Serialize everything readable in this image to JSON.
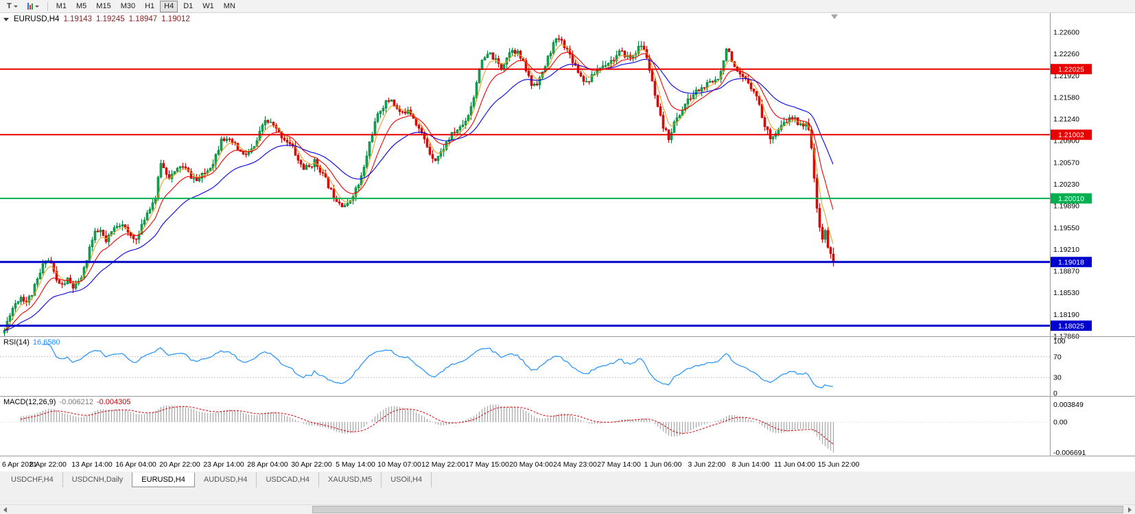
{
  "toolbar": {
    "text_tool": "T",
    "timeframes": [
      "M1",
      "M5",
      "M15",
      "M30",
      "H1",
      "H4",
      "D1",
      "W1",
      "MN"
    ],
    "active_timeframe": "H4"
  },
  "chart_header": {
    "symbol": "EURUSD,H4",
    "open": "1.19143",
    "high": "1.19245",
    "low": "1.18947",
    "close": "1.19012"
  },
  "price_axis": {
    "labels": [
      "1.22600",
      "1.22260",
      "1.21920",
      "1.21580",
      "1.21240",
      "1.20900",
      "1.20570",
      "1.20230",
      "1.19890",
      "1.19550",
      "1.19210",
      "1.18870",
      "1.18530",
      "1.18190",
      "1.17860"
    ],
    "top_value": 1.226,
    "bottom_value": 1.1786
  },
  "hlines": [
    {
      "label": "1.22025",
      "value": 1.22025,
      "color": "#e80000",
      "width": 2
    },
    {
      "label": "1.21002",
      "value": 1.21002,
      "color": "#e80000",
      "width": 2
    },
    {
      "label": "1.20010",
      "value": 1.2001,
      "color": "#00b050",
      "width": 2
    },
    {
      "label": "1.19018",
      "value": 1.19018,
      "color": "#0000cc",
      "width": 3
    },
    {
      "label": "1.18025",
      "value": 1.18025,
      "color": "#0000cc",
      "width": 3
    }
  ],
  "date_axis": [
    "6 Apr 2021",
    "8 Apr 22:00",
    "13 Apr 14:00",
    "16 Apr 04:00",
    "20 Apr 22:00",
    "23 Apr 14:00",
    "28 Apr 04:00",
    "30 Apr 22:00",
    "5 May 14:00",
    "10 May 07:00",
    "12 May 22:00",
    "17 May 15:00",
    "20 May 04:00",
    "24 May 23:00",
    "27 May 14:00",
    "1 Jun 06:00",
    "3 Jun 22:00",
    "8 Jun 14:00",
    "11 Jun 04:00",
    "15 Jun 22:00"
  ],
  "rsi": {
    "name": "RSI(14)",
    "value": "16.6580",
    "axis_labels": [
      "100",
      "70",
      "30",
      "0"
    ],
    "levels": [
      70,
      30
    ],
    "line_color": "#1e90ff",
    "level_color": "#c4c4c4"
  },
  "macd": {
    "name": "MACD(12,26,9)",
    "value_main": "-0.006212",
    "value_signal": "-0.004305",
    "axis_labels": [
      "0.003849",
      "0.00",
      "-0.006691"
    ],
    "axis_max": 0.003849,
    "axis_min": -0.006691,
    "histogram_color": "#a6a6a6",
    "signal_color": "#d60000"
  },
  "tabs": [
    {
      "label": "USDCHF,H4",
      "active": false
    },
    {
      "label": "USDCNH,Daily",
      "active": false
    },
    {
      "label": "EURUSD,H4",
      "active": true
    },
    {
      "label": "AUDUSD,H4",
      "active": false
    },
    {
      "label": "USDCAD,H4",
      "active": false
    },
    {
      "label": "XAUUSD,M5",
      "active": false
    },
    {
      "label": "USOil,H4",
      "active": false
    }
  ],
  "chart_data": {
    "type": "candlestick",
    "symbol": "EURUSD",
    "timeframe": "H4",
    "visible_range": {
      "price_top": 1.226,
      "price_bottom": 1.1786,
      "first_label": "6 Apr 2021",
      "last_label": "15 Jun 22:00"
    },
    "candle_count": 303,
    "noise_seed": 11,
    "bull_color": "#00b050",
    "bull_stroke": "#007a38",
    "bear_color": "#f40000",
    "bear_stroke": "#c00000",
    "moving_averages": [
      {
        "period": 5,
        "color": "#e9a21f"
      },
      {
        "period": 12,
        "color": "#f20000"
      },
      {
        "period": 30,
        "color": "#0000e6"
      }
    ],
    "last_candle": {
      "open": 1.19143,
      "high": 1.19245,
      "low": 1.18947,
      "close": 1.19012
    },
    "anchors": [
      [
        0,
        1.1795
      ],
      [
        2,
        1.1822
      ],
      [
        4,
        1.1838
      ],
      [
        6,
        1.1848
      ],
      [
        8,
        1.184
      ],
      [
        10,
        1.1852
      ],
      [
        13,
        1.1884
      ],
      [
        15,
        1.1908
      ],
      [
        17,
        1.19
      ],
      [
        19,
        1.1872
      ],
      [
        21,
        1.1865
      ],
      [
        23,
        1.1874
      ],
      [
        25,
        1.1862
      ],
      [
        27,
        1.1868
      ],
      [
        29,
        1.189
      ],
      [
        31,
        1.1925
      ],
      [
        33,
        1.1946
      ],
      [
        35,
        1.195
      ],
      [
        37,
        1.1932
      ],
      [
        39,
        1.1948
      ],
      [
        41,
        1.196
      ],
      [
        43,
        1.1963
      ],
      [
        45,
        1.1945
      ],
      [
        47,
        1.1938
      ],
      [
        49,
        1.1944
      ],
      [
        51,
        1.197
      ],
      [
        53,
        1.1988
      ],
      [
        55,
        1.2002
      ],
      [
        56,
        1.203
      ],
      [
        57,
        1.2058
      ],
      [
        58,
        1.2048
      ],
      [
        60,
        1.2035
      ],
      [
        62,
        1.204
      ],
      [
        64,
        1.2052
      ],
      [
        66,
        1.2046
      ],
      [
        68,
        1.2035
      ],
      [
        70,
        1.2028
      ],
      [
        72,
        1.2036
      ],
      [
        74,
        1.2045
      ],
      [
        76,
        1.2058
      ],
      [
        78,
        1.208
      ],
      [
        79,
        1.2098
      ],
      [
        81,
        1.209
      ],
      [
        83,
        1.2088
      ],
      [
        85,
        1.2078
      ],
      [
        87,
        1.2068
      ],
      [
        89,
        1.2072
      ],
      [
        91,
        1.208
      ],
      [
        93,
        1.2102
      ],
      [
        95,
        1.2122
      ],
      [
        97,
        1.2118
      ],
      [
        99,
        1.2108
      ],
      [
        101,
        1.2098
      ],
      [
        103,
        1.209
      ],
      [
        105,
        1.208
      ],
      [
        107,
        1.206
      ],
      [
        109,
        1.2048
      ],
      [
        111,
        1.205
      ],
      [
        113,
        1.2058
      ],
      [
        115,
        1.2046
      ],
      [
        117,
        1.203
      ],
      [
        119,
        1.2012
      ],
      [
        121,
        1.2
      ],
      [
        123,
        1.1992
      ],
      [
        125,
        1.199
      ],
      [
        127,
        1.2008
      ],
      [
        129,
        1.2022
      ],
      [
        131,
        1.2048
      ],
      [
        133,
        1.2088
      ],
      [
        135,
        1.2118
      ],
      [
        137,
        1.214
      ],
      [
        139,
        1.215
      ],
      [
        141,
        1.2156
      ],
      [
        143,
        1.214
      ],
      [
        145,
        1.2132
      ],
      [
        147,
        1.2142
      ],
      [
        149,
        1.2128
      ],
      [
        151,
        1.211
      ],
      [
        153,
        1.2092
      ],
      [
        155,
        1.2072
      ],
      [
        157,
        1.2062
      ],
      [
        159,
        1.2072
      ],
      [
        161,
        1.2088
      ],
      [
        163,
        1.21
      ],
      [
        165,
        1.2108
      ],
      [
        167,
        1.2116
      ],
      [
        169,
        1.2132
      ],
      [
        171,
        1.216
      ],
      [
        173,
        1.2205
      ],
      [
        175,
        1.222
      ],
      [
        177,
        1.2226
      ],
      [
        179,
        1.2215
      ],
      [
        181,
        1.2205
      ],
      [
        183,
        1.2222
      ],
      [
        185,
        1.2235
      ],
      [
        187,
        1.2228
      ],
      [
        189,
        1.2212
      ],
      [
        191,
        1.219
      ],
      [
        192,
        1.2178
      ],
      [
        194,
        1.2182
      ],
      [
        196,
        1.2195
      ],
      [
        198,
        1.222
      ],
      [
        200,
        1.2242
      ],
      [
        202,
        1.225
      ],
      [
        204,
        1.224
      ],
      [
        206,
        1.2225
      ],
      [
        208,
        1.2208
      ],
      [
        210,
        1.2192
      ],
      [
        212,
        1.2182
      ],
      [
        214,
        1.219
      ],
      [
        216,
        1.2202
      ],
      [
        218,
        1.2208
      ],
      [
        220,
        1.2214
      ],
      [
        222,
        1.2218
      ],
      [
        224,
        1.2228
      ],
      [
        226,
        1.2225
      ],
      [
        228,
        1.222
      ],
      [
        230,
        1.223
      ],
      [
        232,
        1.224
      ],
      [
        234,
        1.2222
      ],
      [
        236,
        1.218
      ],
      [
        238,
        1.214
      ],
      [
        240,
        1.2112
      ],
      [
        242,
        1.2096
      ],
      [
        244,
        1.2118
      ],
      [
        246,
        1.2132
      ],
      [
        248,
        1.2148
      ],
      [
        250,
        1.2158
      ],
      [
        252,
        1.2168
      ],
      [
        254,
        1.2172
      ],
      [
        256,
        1.2178
      ],
      [
        258,
        1.2182
      ],
      [
        260,
        1.219
      ],
      [
        262,
        1.2215
      ],
      [
        263,
        1.2238
      ],
      [
        264,
        1.223
      ],
      [
        265,
        1.221
      ],
      [
        267,
        1.2195
      ],
      [
        269,
        1.2188
      ],
      [
        271,
        1.2182
      ],
      [
        273,
        1.217
      ],
      [
        275,
        1.2148
      ],
      [
        277,
        1.2112
      ],
      [
        279,
        1.2098
      ],
      [
        281,
        1.2102
      ],
      [
        283,
        1.2112
      ],
      [
        285,
        1.2122
      ],
      [
        287,
        1.2126
      ],
      [
        289,
        1.212
      ],
      [
        291,
        1.2116
      ],
      [
        293,
        1.2112
      ],
      [
        294,
        1.2082
      ],
      [
        295,
        1.2028
      ],
      [
        296,
        1.1985
      ],
      [
        297,
        1.196
      ],
      [
        298,
        1.1938
      ],
      [
        299,
        1.1948
      ],
      [
        300,
        1.1926
      ],
      [
        301,
        1.1912
      ],
      [
        302,
        1.1901
      ]
    ]
  }
}
